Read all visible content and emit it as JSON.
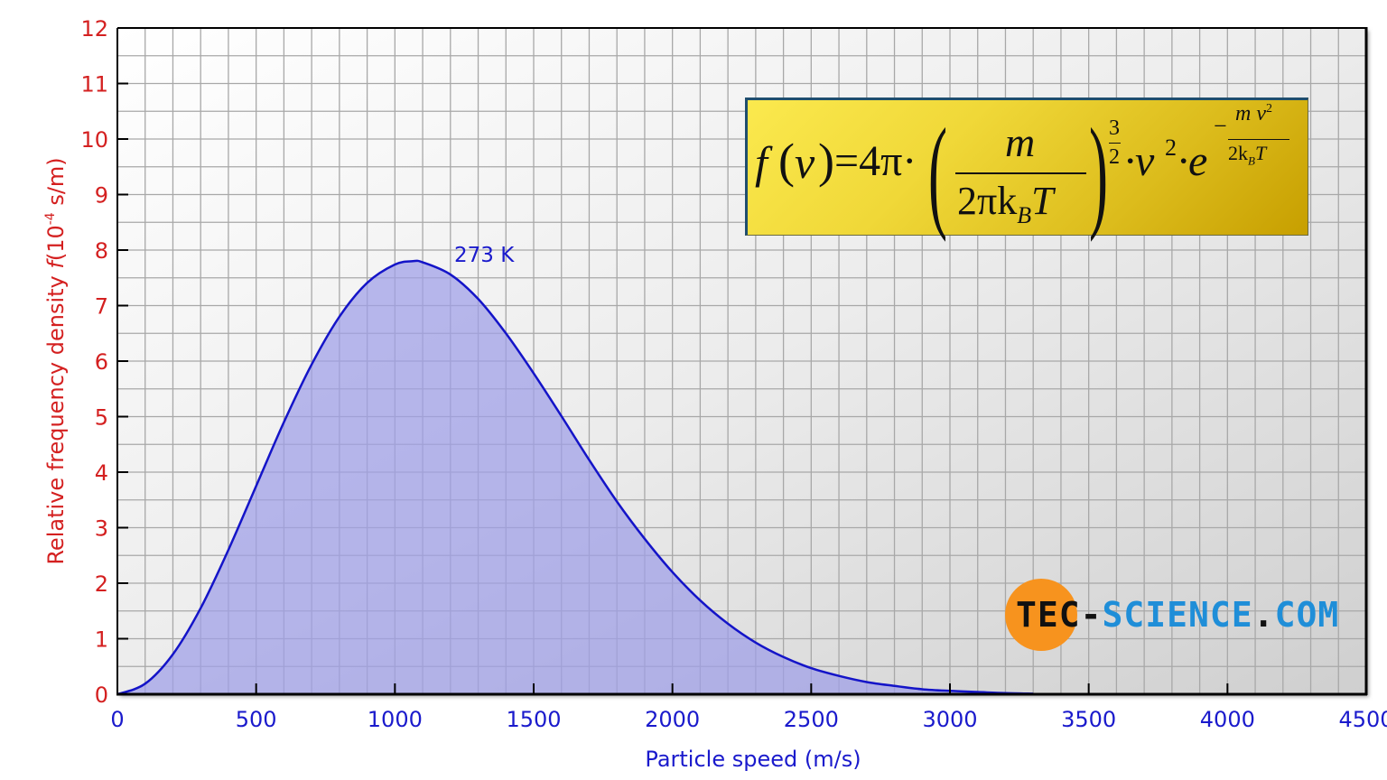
{
  "chart_data": {
    "type": "area",
    "title": "",
    "xlabel": "Particle speed (m/s)",
    "ylabel": "Relative frequency density f (10^-4 s/m)",
    "ylabel_parts": {
      "text": "Relative frequency density ",
      "var": "f",
      "unit_open": "(10",
      "exp": "-4",
      "unit_close": " s/m)"
    },
    "xlim": [
      0,
      4500
    ],
    "ylim": [
      0,
      12
    ],
    "x_ticks": [
      0,
      500,
      1000,
      1500,
      2000,
      2500,
      3000,
      3500,
      4000,
      4500
    ],
    "y_ticks": [
      0,
      1,
      2,
      3,
      4,
      5,
      6,
      7,
      8,
      9,
      10,
      11,
      12
    ],
    "grid": true,
    "minor_grid": {
      "x_step": 100,
      "y_step": 0.5
    },
    "series": [
      {
        "name": "273 K",
        "color": "#1414c8",
        "fill": "#9e9ee8",
        "x": [
          0,
          100,
          200,
          300,
          400,
          500,
          600,
          700,
          800,
          900,
          1000,
          1065,
          1100,
          1200,
          1300,
          1400,
          1500,
          1600,
          1700,
          1800,
          1900,
          2000,
          2100,
          2200,
          2300,
          2400,
          2500,
          2600,
          2700,
          2800,
          2900,
          3000,
          3100,
          3200,
          3300
        ],
        "values": [
          0,
          0.19,
          0.72,
          1.55,
          2.6,
          3.75,
          4.9,
          5.94,
          6.8,
          7.41,
          7.74,
          7.8,
          7.78,
          7.56,
          7.12,
          6.5,
          5.78,
          5.01,
          4.22,
          3.47,
          2.8,
          2.2,
          1.69,
          1.27,
          0.93,
          0.67,
          0.47,
          0.33,
          0.22,
          0.15,
          0.09,
          0.06,
          0.04,
          0.02,
          0.01
        ]
      }
    ],
    "annotations": [
      {
        "text": "273 K",
        "x": 1220,
        "y": 7.95
      }
    ],
    "formula": "f(v) = 4π·(m / (2π k_B T))^(3/2) · v² · e^(−m v² / (2 k_B T))",
    "colors": {
      "ytick": "#d42020",
      "xtick": "#1a1acc",
      "grid": "#a8a8a8",
      "axis": "#000000"
    }
  },
  "formula_box": {
    "lhs": "f",
    "paren_open": "(",
    "var": "v",
    "paren_close": ")",
    "eq": "=4π·",
    "num": "m",
    "den": "2πk",
    "den_sub": "B",
    "den_tail": "T",
    "exp_num": "3",
    "exp_den": "2",
    "mid": "·v",
    "mid_exp": "2",
    "dot_e": "·e",
    "e_minus": "−",
    "e_num": "m v",
    "e_num_exp": "2",
    "e_den": "2k",
    "e_den_sub": "B",
    "e_den_tail": "T"
  },
  "logo": {
    "tec": "TEC",
    "dash": "-",
    "science": "SCIENCE",
    "dot": ".",
    "com": "COM",
    "circle_color": "#f7931e",
    "blue": "#1f8ed8"
  }
}
